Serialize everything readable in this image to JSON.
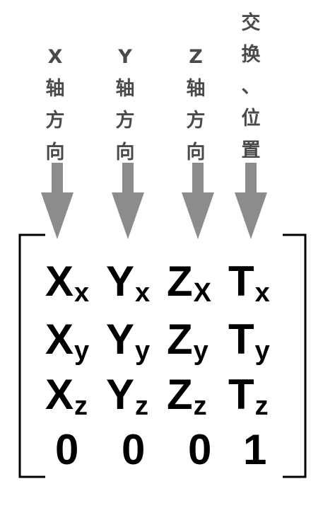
{
  "headers": [
    {
      "chars": [
        "X",
        "轴",
        "方",
        "向"
      ]
    },
    {
      "chars": [
        "Y",
        "轴",
        "方",
        "向"
      ]
    },
    {
      "chars": [
        "Z",
        "轴",
        "方",
        "向"
      ]
    },
    {
      "chars": [
        "交",
        "换",
        "、",
        "位",
        "置"
      ]
    }
  ],
  "matrix": [
    [
      {
        "main": "X",
        "sub": "x"
      },
      {
        "main": "Y",
        "sub": "x"
      },
      {
        "main": "Z",
        "sub": "X"
      },
      {
        "main": "T",
        "sub": "x"
      }
    ],
    [
      {
        "main": "X",
        "sub": "y"
      },
      {
        "main": "Y",
        "sub": "y"
      },
      {
        "main": "Z",
        "sub": "y"
      },
      {
        "main": "T",
        "sub": "y"
      }
    ],
    [
      {
        "main": "X",
        "sub": "z"
      },
      {
        "main": "Y",
        "sub": "z"
      },
      {
        "main": "Z",
        "sub": "z"
      },
      {
        "main": "T",
        "sub": "z"
      }
    ],
    [
      {
        "main": "0",
        "sub": ""
      },
      {
        "main": "0",
        "sub": ""
      },
      {
        "main": "0",
        "sub": ""
      },
      {
        "main": "1",
        "sub": ""
      }
    ]
  ],
  "colors": {
    "arrow": "#8c8c8c",
    "label": "#4a4a4a",
    "matrix_text": "#000000",
    "bracket": "#000000"
  }
}
